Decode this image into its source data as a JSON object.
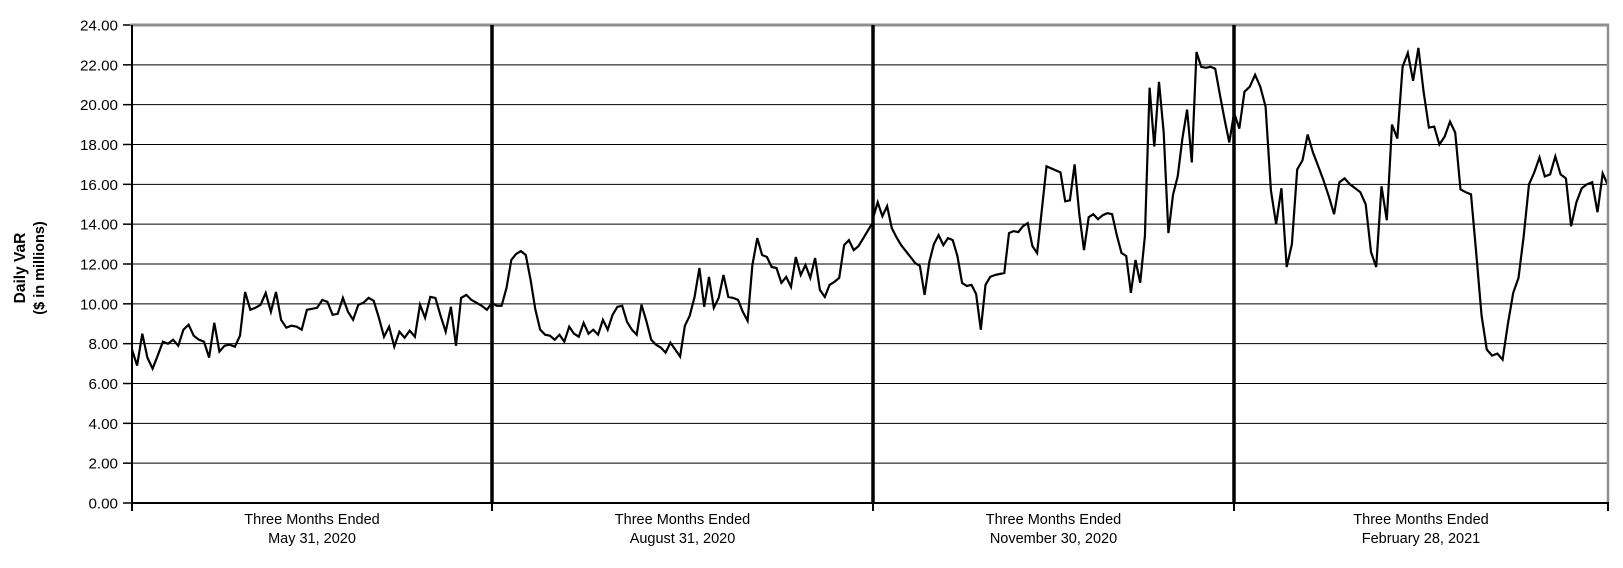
{
  "chart_title": "",
  "y_axis": {
    "title_line1": "Daily VaR",
    "title_line2": "($ in millions)",
    "min": 0,
    "max": 24,
    "step": 2,
    "ticks": [
      "24.00",
      "22.00",
      "20.00",
      "18.00",
      "16.00",
      "14.00",
      "12.00",
      "10.00",
      "8.00",
      "6.00",
      "4.00",
      "2.00",
      "0.00"
    ]
  },
  "x_axis": {
    "labels": [
      {
        "line1": "Three Months Ended",
        "line2": "May 31, 2020"
      },
      {
        "line1": "Three Months Ended",
        "line2": "August 31, 2020"
      },
      {
        "line1": "Three Months Ended",
        "line2": "November 30, 2020"
      },
      {
        "line1": "Three Months Ended",
        "line2": "February 28, 2021"
      }
    ]
  },
  "colors": {
    "series_line": "#000000",
    "gridline": "#000000",
    "axis": "#000000",
    "separator": "#000000",
    "plot_border_gray": "#8f8f8f"
  },
  "chart_data": {
    "type": "line",
    "title": "",
    "xlabel": "",
    "ylabel": "Daily VaR ($ in millions)",
    "ylim": [
      0,
      24
    ],
    "ytick_step": 2,
    "grid": true,
    "legend": "none",
    "series_name": "Daily VaR",
    "segments": [
      {
        "label": "Three Months Ended May 31, 2020",
        "values": [
          7.7,
          6.9,
          8.5,
          7.3,
          6.75,
          7.4,
          8.1,
          8.0,
          8.2,
          7.9,
          8.7,
          8.95,
          8.4,
          8.2,
          8.1,
          7.3,
          9.05,
          7.6,
          7.9,
          7.95,
          7.85,
          8.4,
          10.6,
          9.7,
          9.8,
          9.95,
          10.55,
          9.6,
          10.6,
          9.2,
          8.8,
          8.9,
          8.85,
          8.7,
          9.7,
          9.75,
          9.8,
          10.2,
          10.1,
          9.45,
          9.5,
          10.3,
          9.6,
          9.2,
          9.95,
          10.05,
          10.3,
          10.15,
          9.3,
          8.35,
          8.85,
          7.85,
          8.6,
          8.3,
          8.65,
          8.35,
          9.95,
          9.3,
          10.35,
          10.3,
          9.4,
          8.6,
          9.85,
          7.9,
          10.3,
          10.45,
          10.2,
          10.05,
          9.9,
          9.7,
          10.05
        ]
      },
      {
        "label": "Three Months Ended August 31, 2020",
        "values": [
          10.05,
          9.9,
          9.9,
          10.8,
          12.2,
          12.5,
          12.65,
          12.45,
          11.2,
          9.7,
          8.7,
          8.45,
          8.4,
          8.2,
          8.45,
          8.1,
          8.85,
          8.5,
          8.35,
          9.05,
          8.5,
          8.7,
          8.45,
          9.2,
          8.7,
          9.45,
          9.85,
          9.9,
          9.1,
          8.7,
          8.45,
          9.95,
          9.15,
          8.2,
          7.95,
          7.8,
          7.55,
          8.05,
          7.7,
          7.35,
          8.9,
          9.4,
          10.35,
          11.8,
          9.85,
          11.35,
          9.8,
          10.3,
          11.45,
          10.35,
          10.3,
          10.2,
          9.6,
          9.15,
          11.95,
          13.3,
          12.45,
          12.35,
          11.85,
          11.8,
          11.05,
          11.35,
          10.85,
          12.35,
          11.45,
          11.95,
          11.3,
          12.3,
          10.7,
          10.35,
          10.95,
          11.1,
          11.3,
          12.95,
          13.2,
          12.7,
          12.9,
          13.3,
          13.7,
          14.1
        ]
      },
      {
        "label": "Three Months Ended November 30, 2020",
        "values": [
          14.3,
          15.1,
          14.4,
          14.9,
          13.8,
          13.35,
          12.95,
          12.65,
          12.35,
          12.05,
          11.9,
          10.45,
          12.1,
          13.0,
          13.45,
          12.95,
          13.3,
          13.2,
          12.4,
          11.05,
          10.9,
          10.95,
          10.5,
          8.7,
          10.95,
          11.35,
          11.45,
          11.5,
          11.55,
          13.55,
          13.65,
          13.6,
          13.9,
          14.05,
          12.9,
          12.55,
          14.7,
          16.9,
          16.8,
          16.7,
          16.6,
          15.15,
          15.2,
          17.0,
          14.5,
          12.7,
          14.35,
          14.5,
          14.25,
          14.45,
          14.55,
          14.5,
          13.45,
          12.55,
          12.4,
          10.55,
          12.2,
          11.05,
          13.4,
          20.85,
          17.9,
          21.15,
          18.6,
          13.55,
          15.5,
          16.4,
          18.3,
          19.75,
          17.1,
          22.65,
          21.9,
          21.85,
          21.9,
          21.8,
          20.5,
          19.25,
          18.1,
          19.55
        ]
      },
      {
        "label": "Three Months Ended February 28, 2021",
        "values": [
          19.6,
          18.8,
          20.65,
          20.9,
          21.5,
          20.9,
          19.9,
          15.7,
          14.0,
          15.8,
          11.85,
          13.0,
          16.75,
          17.2,
          18.5,
          17.6,
          16.9,
          16.2,
          15.4,
          14.5,
          16.1,
          16.3,
          16.0,
          15.8,
          15.6,
          15.0,
          12.6,
          11.85,
          15.9,
          14.2,
          19.0,
          18.3,
          21.9,
          22.6,
          21.2,
          22.85,
          20.65,
          18.85,
          18.9,
          18.0,
          18.4,
          19.15,
          18.6,
          15.75,
          15.6,
          15.5,
          12.5,
          9.4,
          7.7,
          7.4,
          7.5,
          7.2,
          9.0,
          10.55,
          11.3,
          13.4,
          16.0,
          16.6,
          17.35,
          16.4,
          16.5,
          17.4,
          16.5,
          16.3,
          13.9,
          15.1,
          15.8,
          16.0,
          16.1,
          14.6,
          16.55,
          15.95
        ]
      }
    ]
  }
}
